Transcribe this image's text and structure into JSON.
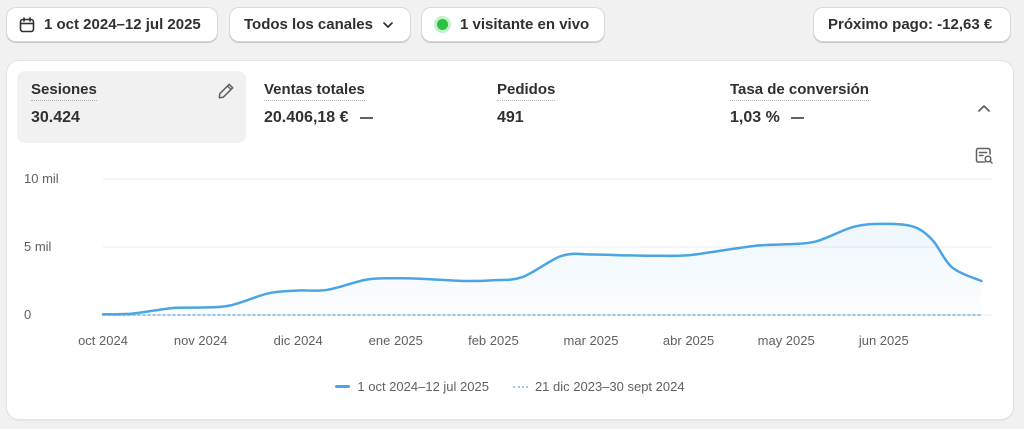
{
  "toolbar": {
    "date_range": "1 oct 2024–12 jul 2025",
    "channels": "Todos los canales",
    "live_visitors": "1 visitante en vivo",
    "next_payout": "Próximo pago: -12,63 €"
  },
  "metrics": [
    {
      "label": "Sesiones",
      "value": "30.424"
    },
    {
      "label": "Ventas totales",
      "value": "20.406,18 €"
    },
    {
      "label": "Pedidos",
      "value": "491"
    },
    {
      "label": "Tasa de conversión",
      "value": "1,03 %"
    }
  ],
  "icons": {
    "date": "calendar-icon",
    "channels": "chevron-down-icon",
    "live": "live-dot-icon",
    "edit": "pencil-icon",
    "collapse": "chevron-up-icon",
    "chart_options": "chart-search-icon"
  },
  "colors": {
    "current_series": "#4ba5e3",
    "previous_series": "#9cc8ea",
    "live_dot": "#29c241"
  },
  "chart_data": {
    "type": "area",
    "x": [
      "oct 2024",
      "nov 2024",
      "dic 2024",
      "ene 2025",
      "feb 2025",
      "mar 2025",
      "abr 2025",
      "may 2025",
      "jun 2025"
    ],
    "y_ticks": [
      "10 mil",
      "5 mil",
      "0"
    ],
    "ylim": [
      0,
      10000
    ],
    "series": [
      {
        "name": "1 oct 2024–12 jul 2025",
        "style": "solid",
        "x": [
          0,
          0.3,
          0.7,
          1,
          1.3,
          1.7,
          2,
          2.3,
          2.7,
          3,
          3.3,
          3.7,
          4,
          4.3,
          4.7,
          5,
          5.3,
          5.7,
          6,
          6.3,
          6.7,
          7,
          7.3,
          7.7,
          8,
          8.3,
          8.5,
          8.7,
          9
        ],
        "values": [
          50,
          100,
          500,
          550,
          700,
          1600,
          1800,
          1850,
          2600,
          2700,
          2650,
          2500,
          2550,
          2800,
          4350,
          4450,
          4400,
          4350,
          4400,
          4700,
          5100,
          5200,
          5400,
          6500,
          6700,
          6500,
          5500,
          3500,
          2500
        ]
      },
      {
        "name": "21 dic 2023–30 sept 2024",
        "style": "dotted",
        "x": [
          0,
          9
        ],
        "values": [
          0,
          0
        ]
      }
    ],
    "grid": true,
    "legend_position": "bottom-center"
  }
}
